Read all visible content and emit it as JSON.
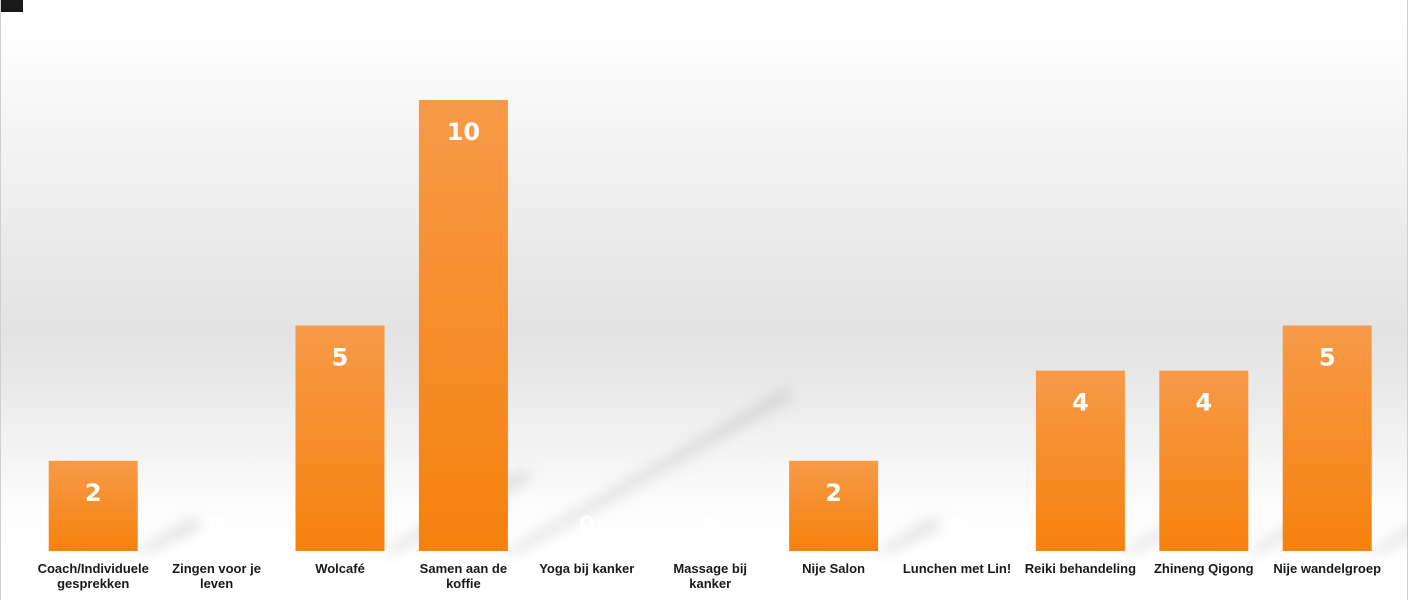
{
  "colors": {
    "bar_top": "#f79a48",
    "bar_bottom": "#f6810d",
    "shadow": "#b8b8b8"
  },
  "chart_data": {
    "type": "bar",
    "categories": [
      "Coach/Individuele gesprekken",
      "Zingen voor je leven",
      "Wolcafé",
      "Samen aan de koffie",
      "Yoga bij kanker",
      "Massage bij kanker",
      "Nije Salon",
      "Lunchen met Lin!",
      "Reiki behandeling",
      "Zhineng Qigong",
      "Nije wandelgroep"
    ],
    "category_label_lines": [
      [
        "Coach/Individuele",
        "gesprekken"
      ],
      [
        "Zingen voor je",
        "leven"
      ],
      [
        "Wolcafé"
      ],
      [
        "Samen aan de",
        "koffie"
      ],
      [
        "Yoga bij kanker"
      ],
      [
        "Massage bij",
        "kanker"
      ],
      [
        "Nije Salon"
      ],
      [
        "Lunchen met Lin!"
      ],
      [
        "Reiki behandeling"
      ],
      [
        "Zhineng Qigong"
      ],
      [
        "Nije wandelgroep"
      ]
    ],
    "values": [
      2,
      0,
      5,
      10,
      0,
      0,
      2,
      0,
      4,
      4,
      5
    ],
    "data_labels": true,
    "ylim": [
      0,
      10
    ],
    "grid": false,
    "legend": "none",
    "title": "",
    "xlabel": "",
    "ylabel": ""
  }
}
